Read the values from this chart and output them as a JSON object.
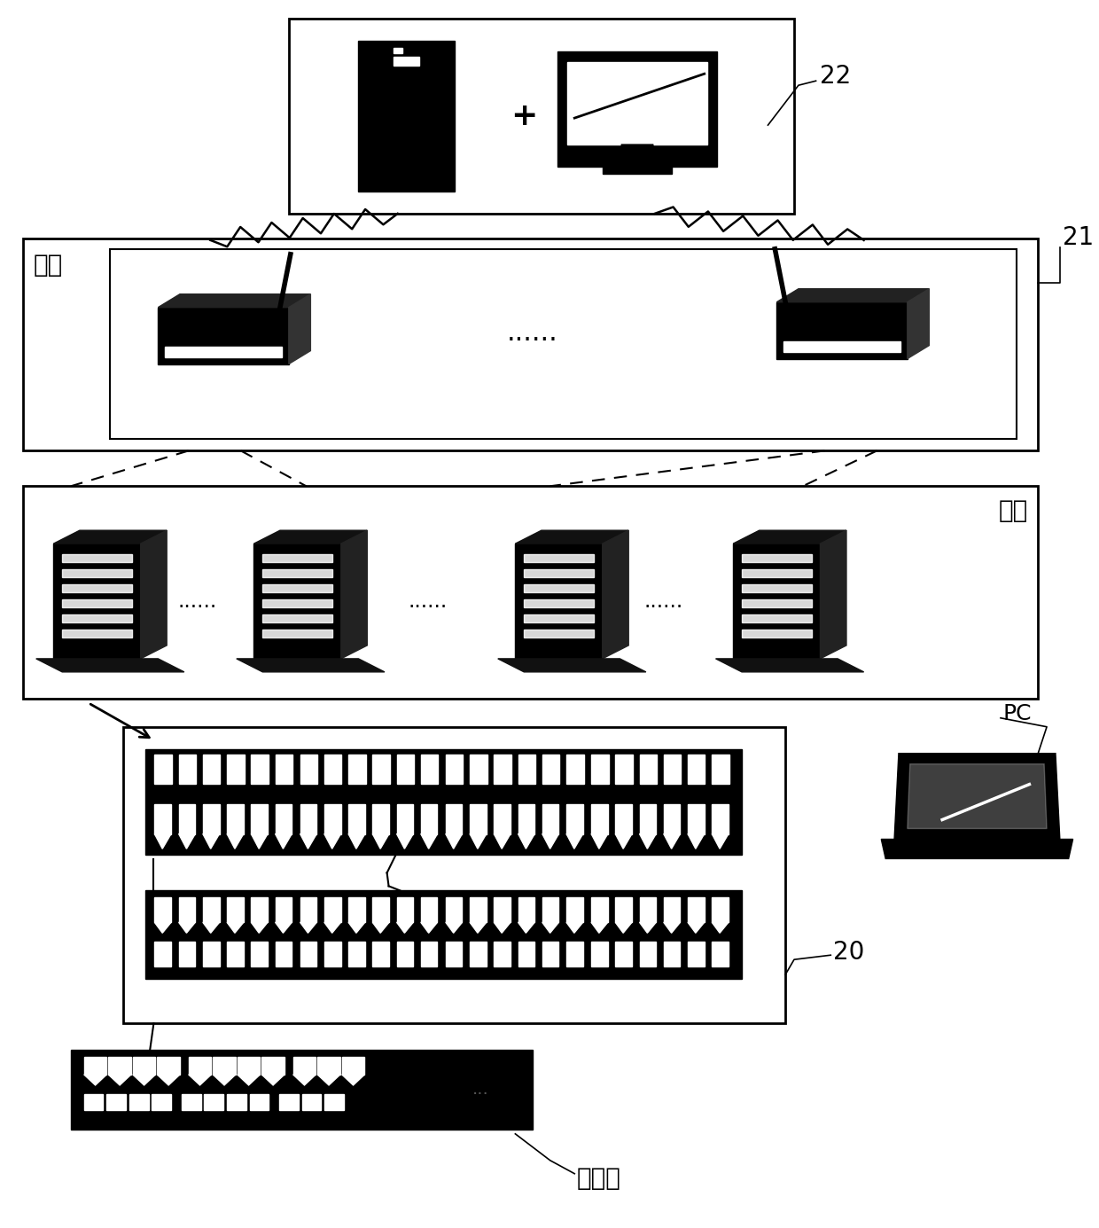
{
  "bg_color": "#ffffff",
  "label_22": "22",
  "label_21": "21",
  "label_20": "20",
  "label_PC": "PC",
  "label_jifang": "机房",
  "label_jigui": "机柜",
  "label_jiaohuanji": "交换机"
}
